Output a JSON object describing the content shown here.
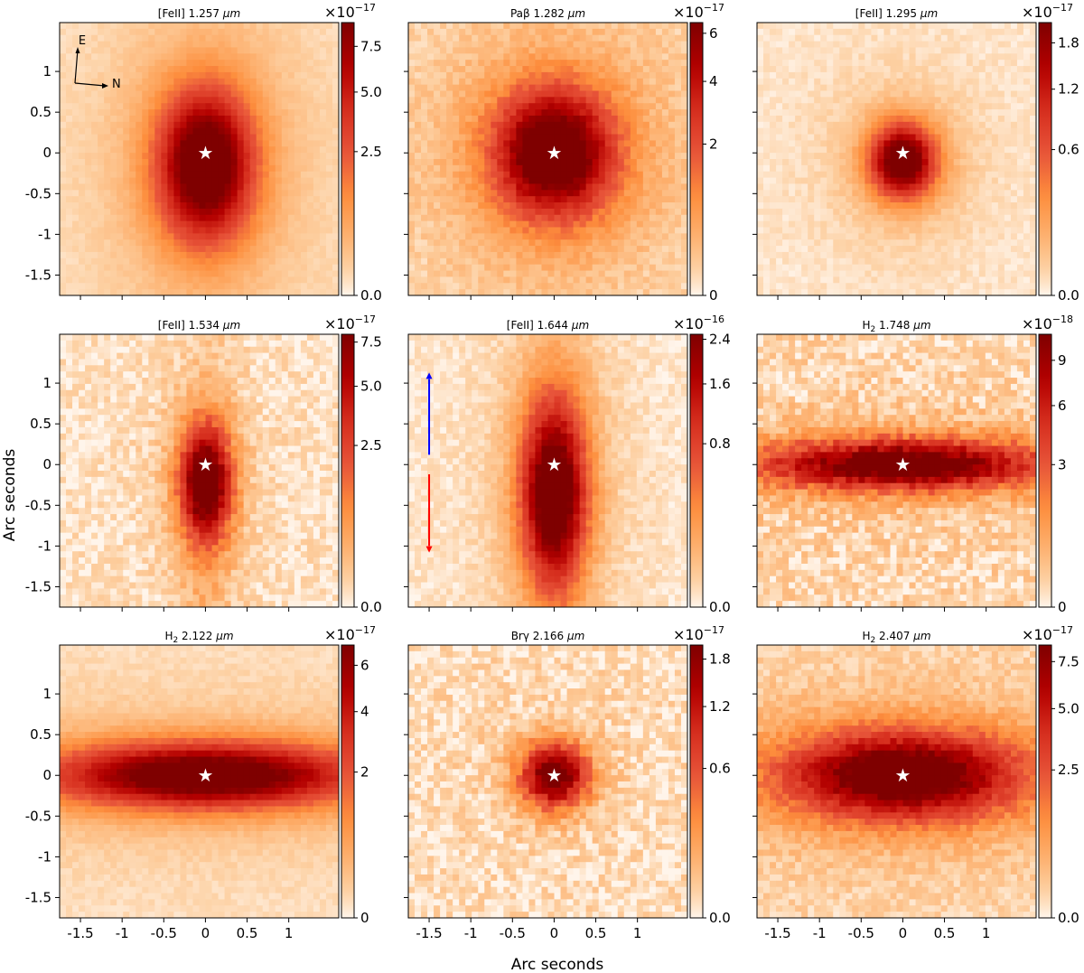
{
  "figure": {
    "xlabel": "Arc seconds",
    "ylabel": "Arc seconds",
    "x_ticks": [
      -1.5,
      -1,
      -0.5,
      0,
      0.5,
      1
    ],
    "x_tick_labels": [
      "-1.5",
      "-1",
      "-0.5",
      "0",
      "0.5",
      "1"
    ],
    "y_ticks": [
      1,
      0.5,
      0,
      -0.5,
      -1,
      -1.5
    ],
    "y_tick_labels": [
      "1",
      "0.5",
      "0",
      "-0.5",
      "-1",
      "-1.5"
    ],
    "axis_range": [
      -1.75,
      1.6
    ],
    "star_symbol": "★",
    "colormap": [
      "#fff5eb",
      "#fdd0a2",
      "#fdae6b",
      "#fd8d3c",
      "#e8553a",
      "#d7301f",
      "#b30000",
      "#7f0000"
    ]
  },
  "compass": {
    "east_label": "E",
    "north_label": "N"
  },
  "jet_arrows": {
    "blueshift_color": "#0000ff",
    "redshift_color": "#ff0000"
  },
  "chart_data": [
    {
      "type": "heatmap",
      "title_pre": "[FeII] 1.257 ",
      "title_unit": "μm",
      "scale_exp": "×10",
      "scale_pow": "−17",
      "cbar_max": 9.0,
      "cbar_ticks": [
        0,
        2.5,
        5.0,
        7.5
      ],
      "cbar_labels": [
        "0.0",
        "2.5",
        "5.0",
        "7.5"
      ],
      "cbar_gamma": 0.5,
      "peak_offset_y": -0.15,
      "shape": {
        "sx": 0.4,
        "sy": 0.65,
        "halo": 0.2,
        "noise": 0.05,
        "floor": 0.04
      }
    },
    {
      "type": "heatmap",
      "title_pre": "Paβ 1.282 ",
      "title_unit": "μm",
      "scale_exp": "×10",
      "scale_pow": "−17",
      "cbar_max": 6.5,
      "cbar_ticks": [
        0,
        2,
        4,
        6
      ],
      "cbar_labels": [
        "0",
        "2",
        "4",
        "6"
      ],
      "cbar_gamma": 0.5,
      "peak_offset_y": 0,
      "shape": {
        "sx": 0.5,
        "sy": 0.55,
        "halo": 0.2,
        "noise": 0.12,
        "floor": 0.05
      }
    },
    {
      "type": "heatmap",
      "title_pre": "[FeII] 1.295 ",
      "title_unit": "μm",
      "scale_exp": "×10",
      "scale_pow": "−17",
      "cbar_max": 2.1,
      "cbar_ticks": [
        0,
        0.6,
        1.2,
        1.8
      ],
      "cbar_labels": [
        "0.0",
        "0.6",
        "1.2",
        "1.8"
      ],
      "cbar_gamma": 0.5,
      "peak_offset_y": -0.1,
      "shape": {
        "sx": 0.28,
        "sy": 0.32,
        "halo": 0.15,
        "noise": 0.07,
        "floor": 0.03
      }
    },
    {
      "type": "heatmap",
      "title_pre": "[FeII] 1.534 ",
      "title_unit": "μm",
      "scale_exp": "×10",
      "scale_pow": "−17",
      "cbar_max": 8.0,
      "cbar_ticks": [
        0,
        2.5,
        5.0,
        7.5
      ],
      "cbar_labels": [
        "0.0",
        "2.5",
        "5.0",
        "7.5"
      ],
      "cbar_gamma": 0.45,
      "peak_offset_y": -0.2,
      "shape": {
        "sx": 0.22,
        "sy": 0.5,
        "halo": 0.1,
        "noise": 0.16,
        "floor": 0.02,
        "jet": true
      }
    },
    {
      "type": "heatmap",
      "title_pre": "[FeII] 1.644 ",
      "title_unit": "μm",
      "scale_exp": "×10",
      "scale_pow": "−16",
      "cbar_max": 2.5,
      "cbar_ticks": [
        0,
        0.8,
        1.6,
        2.4
      ],
      "cbar_labels": [
        "0.0",
        "0.8",
        "1.6",
        "2.4"
      ],
      "cbar_gamma": 0.45,
      "peak_offset_y": -0.3,
      "shape": {
        "sx": 0.28,
        "sy": 0.8,
        "halo": 0.12,
        "noise": 0.1,
        "floor": 0.02,
        "jet": true
      }
    },
    {
      "type": "heatmap",
      "title_pre": "H",
      "title_sub": "2",
      "title_post": " 1.748 ",
      "title_unit": "μm",
      "scale_exp": "×10",
      "scale_pow": "−18",
      "cbar_max": 11.0,
      "cbar_ticks": [
        0,
        3,
        6,
        9
      ],
      "cbar_labels": [
        "0",
        "3",
        "6",
        "9"
      ],
      "cbar_gamma": 0.5,
      "peak_offset_y": 0,
      "shape": {
        "sx": 1.2,
        "sy": 0.22,
        "halo": 0.1,
        "noise": 0.22,
        "floor": 0.05
      }
    },
    {
      "type": "heatmap",
      "title_pre": "H",
      "title_sub": "2",
      "title_post": " 2.122 ",
      "title_unit": "μm",
      "scale_exp": "×10",
      "scale_pow": "−17",
      "cbar_max": 7.0,
      "cbar_ticks": [
        0,
        2,
        4,
        6
      ],
      "cbar_labels": [
        "0",
        "2",
        "4",
        "6"
      ],
      "cbar_gamma": 0.5,
      "peak_offset_y": 0,
      "shape": {
        "sx": 1.3,
        "sy": 0.28,
        "halo": 0.15,
        "noise": 0.06,
        "floor": 0.05
      }
    },
    {
      "type": "heatmap",
      "title_pre": "Brγ 2.166 ",
      "title_unit": "μm",
      "scale_exp": "×10",
      "scale_pow": "−17",
      "cbar_max": 2.0,
      "cbar_ticks": [
        0,
        0.6,
        1.2,
        1.8
      ],
      "cbar_labels": [
        "0.0",
        "0.6",
        "1.2",
        "1.8"
      ],
      "cbar_gamma": 0.5,
      "peak_offset_y": 0,
      "shape": {
        "sx": 0.28,
        "sy": 0.28,
        "halo": 0.08,
        "noise": 0.2,
        "floor": 0.03
      }
    },
    {
      "type": "heatmap",
      "title_pre": "H",
      "title_sub": "2",
      "title_post": " 2.407 ",
      "title_unit": "μm",
      "scale_exp": "×10",
      "scale_pow": "−17",
      "cbar_max": 8.5,
      "cbar_ticks": [
        0,
        2.5,
        5.0,
        7.5
      ],
      "cbar_labels": [
        "0.0",
        "2.5",
        "5.0",
        "7.5"
      ],
      "cbar_gamma": 0.5,
      "peak_offset_y": 0,
      "shape": {
        "sx": 1.0,
        "sy": 0.38,
        "halo": 0.15,
        "noise": 0.14,
        "floor": 0.05
      }
    }
  ]
}
